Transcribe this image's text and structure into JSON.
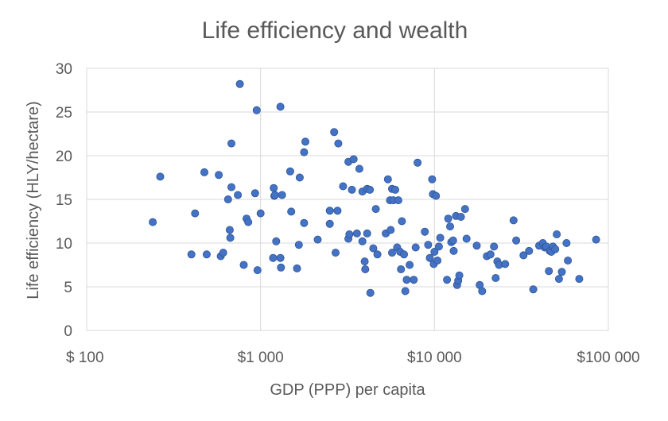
{
  "chart_data": {
    "type": "scatter",
    "title": "Life efficiency and wealth",
    "xlabel": "GDP (PPP) per capita",
    "ylabel": "Life efficiency (HLY/hectare)",
    "x_scale": "log",
    "xlim": [
      100,
      100000
    ],
    "ylim": [
      0,
      30
    ],
    "x_ticks": [
      {
        "value": 100,
        "label": "$ 100"
      },
      {
        "value": 1000,
        "label": "$1 000"
      },
      {
        "value": 10000,
        "label": "$10 000"
      },
      {
        "value": 100000,
        "label": "$100 000"
      }
    ],
    "y_ticks": [
      {
        "value": 0,
        "label": "0"
      },
      {
        "value": 5,
        "label": "5"
      },
      {
        "value": 10,
        "label": "10"
      },
      {
        "value": 15,
        "label": "15"
      },
      {
        "value": 20,
        "label": "20"
      },
      {
        "value": 25,
        "label": "25"
      },
      {
        "value": 30,
        "label": "30"
      }
    ],
    "grid": {
      "horizontal": true,
      "vertical": true
    },
    "legend": "none",
    "marker_color": "#4472c4",
    "points": [
      [
        240,
        12.4
      ],
      [
        265,
        17.6
      ],
      [
        400,
        8.7
      ],
      [
        420,
        13.4
      ],
      [
        475,
        18.1
      ],
      [
        490,
        8.7
      ],
      [
        575,
        17.8
      ],
      [
        590,
        8.5
      ],
      [
        610,
        8.9
      ],
      [
        650,
        15.0
      ],
      [
        665,
        11.5
      ],
      [
        670,
        10.6
      ],
      [
        680,
        16.4
      ],
      [
        680,
        21.4
      ],
      [
        740,
        15.5
      ],
      [
        760,
        28.2
      ],
      [
        800,
        7.5
      ],
      [
        830,
        12.8
      ],
      [
        850,
        12.4
      ],
      [
        930,
        15.7
      ],
      [
        950,
        25.2
      ],
      [
        960,
        6.9
      ],
      [
        1000,
        13.4
      ],
      [
        1180,
        8.3
      ],
      [
        1190,
        16.3
      ],
      [
        1200,
        15.4
      ],
      [
        1210,
        15.5
      ],
      [
        1230,
        10.2
      ],
      [
        1300,
        25.6
      ],
      [
        1300,
        8.3
      ],
      [
        1310,
        7.2
      ],
      [
        1330,
        15.5
      ],
      [
        1480,
        18.2
      ],
      [
        1500,
        13.6
      ],
      [
        1620,
        7.1
      ],
      [
        1660,
        9.8
      ],
      [
        1680,
        17.5
      ],
      [
        1780,
        12.3
      ],
      [
        1780,
        20.4
      ],
      [
        1810,
        21.6
      ],
      [
        2130,
        10.4
      ],
      [
        2500,
        13.7
      ],
      [
        2500,
        12.2
      ],
      [
        2650,
        22.7
      ],
      [
        2700,
        8.9
      ],
      [
        2770,
        13.7
      ],
      [
        2800,
        21.4
      ],
      [
        2980,
        16.5
      ],
      [
        3200,
        19.3
      ],
      [
        3200,
        10.5
      ],
      [
        3240,
        11.0
      ],
      [
        3350,
        16.1
      ],
      [
        3430,
        19.6
      ],
      [
        3580,
        11.1
      ],
      [
        3700,
        18.5
      ],
      [
        3850,
        15.9
      ],
      [
        3850,
        10.2
      ],
      [
        3970,
        7.9
      ],
      [
        4000,
        7.0
      ],
      [
        4100,
        16.2
      ],
      [
        4100,
        11.1
      ],
      [
        4250,
        16.1
      ],
      [
        4280,
        4.3
      ],
      [
        4450,
        9.4
      ],
      [
        4600,
        13.9
      ],
      [
        4700,
        8.7
      ],
      [
        5250,
        11.1
      ],
      [
        5400,
        17.3
      ],
      [
        5550,
        14.9
      ],
      [
        5600,
        11.5
      ],
      [
        5700,
        16.2
      ],
      [
        5700,
        8.9
      ],
      [
        5800,
        14.9
      ],
      [
        5950,
        16.1
      ],
      [
        6100,
        9.5
      ],
      [
        6200,
        14.9
      ],
      [
        6350,
        9.0
      ],
      [
        6420,
        7.0
      ],
      [
        6500,
        12.5
      ],
      [
        6680,
        8.7
      ],
      [
        6800,
        4.5
      ],
      [
        6920,
        5.8
      ],
      [
        7200,
        7.5
      ],
      [
        7600,
        5.8
      ],
      [
        7800,
        9.5
      ],
      [
        8000,
        19.2
      ],
      [
        8800,
        11.3
      ],
      [
        9200,
        9.8
      ],
      [
        9400,
        8.3
      ],
      [
        9700,
        17.3
      ],
      [
        9800,
        15.6
      ],
      [
        9900,
        7.6
      ],
      [
        10000,
        9.0
      ],
      [
        10200,
        15.4
      ],
      [
        10400,
        8.0
      ],
      [
        10600,
        9.6
      ],
      [
        10800,
        10.6
      ],
      [
        11800,
        5.8
      ],
      [
        12000,
        12.8
      ],
      [
        12300,
        11.9
      ],
      [
        12500,
        10.1
      ],
      [
        12800,
        10.3
      ],
      [
        12900,
        9.1
      ],
      [
        13300,
        13.1
      ],
      [
        13500,
        5.2
      ],
      [
        13700,
        5.7
      ],
      [
        13900,
        6.3
      ],
      [
        14200,
        13.0
      ],
      [
        15000,
        13.9
      ],
      [
        15300,
        10.5
      ],
      [
        17500,
        9.7
      ],
      [
        18200,
        5.2
      ],
      [
        18800,
        4.5
      ],
      [
        20000,
        8.5
      ],
      [
        21000,
        8.7
      ],
      [
        22000,
        9.6
      ],
      [
        22500,
        6.0
      ],
      [
        23000,
        7.9
      ],
      [
        23500,
        7.5
      ],
      [
        25500,
        7.6
      ],
      [
        28500,
        12.6
      ],
      [
        29500,
        10.3
      ],
      [
        32500,
        8.6
      ],
      [
        35000,
        9.1
      ],
      [
        37000,
        4.7
      ],
      [
        40000,
        9.7
      ],
      [
        42000,
        10.0
      ],
      [
        43000,
        9.5
      ],
      [
        44000,
        9.6
      ],
      [
        45500,
        6.8
      ],
      [
        46000,
        9.1
      ],
      [
        47000,
        9.0
      ],
      [
        48000,
        9.6
      ],
      [
        49500,
        9.3
      ],
      [
        50500,
        11.0
      ],
      [
        52000,
        5.9
      ],
      [
        54000,
        6.7
      ],
      [
        57500,
        10.0
      ],
      [
        58500,
        8.0
      ],
      [
        68000,
        5.9
      ],
      [
        85000,
        10.4
      ]
    ]
  }
}
